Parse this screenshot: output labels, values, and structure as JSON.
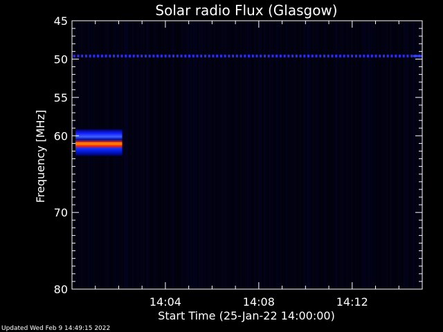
{
  "chart_data": {
    "type": "heatmap",
    "title": "Solar radio Flux (Glasgow)",
    "xlabel": "Start Time (25-Jan-22 14:00:00)",
    "ylabel": "Frequency [MHz]",
    "x_range_minutes": [
      0,
      15
    ],
    "y_range_mhz": [
      45,
      80
    ],
    "y_ticks": [
      {
        "value": 45,
        "label": "45"
      },
      {
        "value": 50,
        "label": "50"
      },
      {
        "value": 55,
        "label": "55"
      },
      {
        "value": 60,
        "label": "60"
      },
      {
        "value": 70,
        "label": "70"
      },
      {
        "value": 80,
        "label": "80"
      }
    ],
    "x_ticks": [
      {
        "value": 4,
        "label": "14:04"
      },
      {
        "value": 8,
        "label": "14:08"
      },
      {
        "value": 12,
        "label": "14:12"
      }
    ],
    "features": [
      {
        "kind": "burst",
        "t_start": 0.15,
        "t_end": 2.15,
        "f_center": 60.9,
        "f_width": 3.5,
        "peak": "red"
      },
      {
        "kind": "interference_line",
        "t_start": 0,
        "t_end": 15,
        "f_center": 49.6,
        "color": "blue"
      }
    ],
    "colors": {
      "background": "#000010",
      "low": "#000040",
      "mid": "#1010ff",
      "high": "#ff3000",
      "peak": "#ffa000"
    }
  },
  "footer": {
    "text": "Updated Wed Feb  9 14:49:15 2022"
  }
}
